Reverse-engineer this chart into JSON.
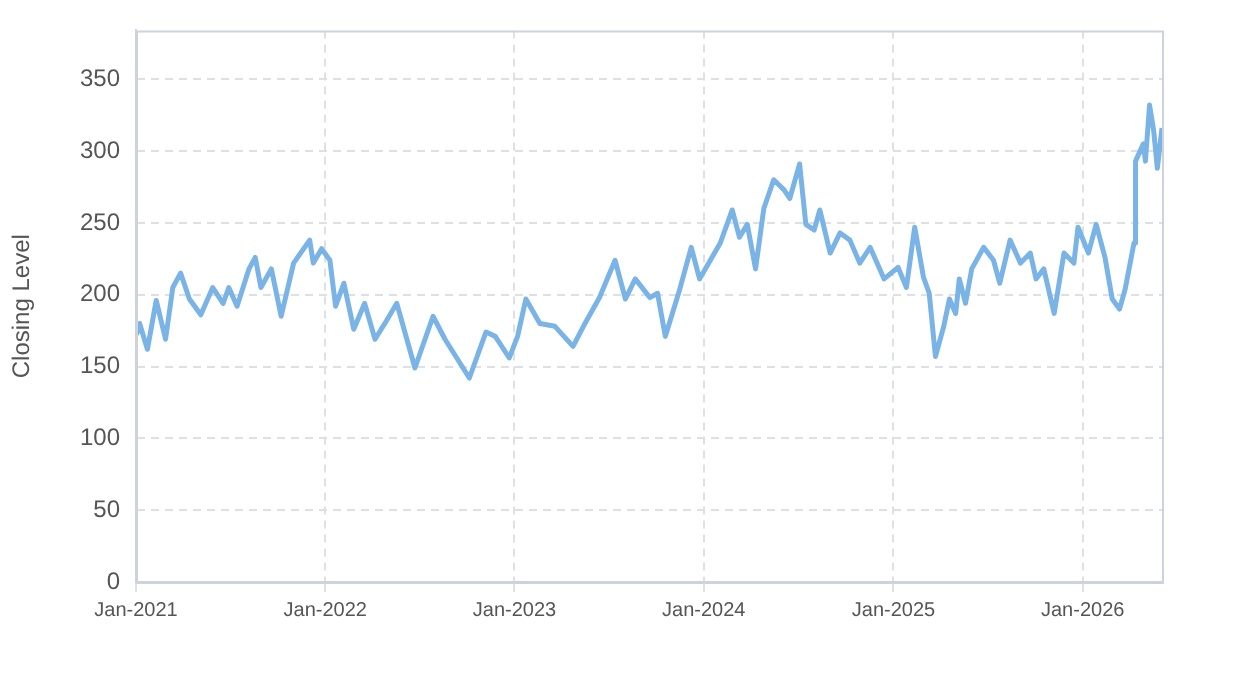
{
  "chart_data": {
    "type": "line",
    "ylabel": "Closing Level",
    "x": [
      "2021-01-02",
      "2021-01-08",
      "2021-01-23",
      "2021-02-09",
      "2021-02-27",
      "2021-03-13",
      "2021-03-28",
      "2021-04-14",
      "2021-05-06",
      "2021-05-29",
      "2021-06-18",
      "2021-06-29",
      "2021-07-15",
      "2021-08-07",
      "2021-08-19",
      "2021-08-30",
      "2021-09-19",
      "2021-10-08",
      "2021-11-01",
      "2021-12-02",
      "2021-12-09",
      "2021-12-25",
      "2022-01-10",
      "2022-01-21",
      "2022-02-06",
      "2022-02-25",
      "2022-03-18",
      "2022-04-07",
      "2022-04-26",
      "2022-05-19",
      "2022-06-23",
      "2022-07-28",
      "2022-08-20",
      "2022-10-06",
      "2022-11-07",
      "2022-11-25",
      "2022-12-22",
      "2023-01-07",
      "2023-01-23",
      "2023-02-19",
      "2023-03-20",
      "2023-04-24",
      "2023-05-17",
      "2023-06-14",
      "2023-07-14",
      "2023-08-03",
      "2023-08-22",
      "2023-09-19",
      "2023-10-04",
      "2023-10-19",
      "2023-11-16",
      "2023-12-08",
      "2023-12-24",
      "2024-02-02",
      "2024-02-25",
      "2024-03-10",
      "2024-03-25",
      "2024-04-10",
      "2024-04-26",
      "2024-05-15",
      "2024-06-04",
      "2024-06-15",
      "2024-07-04",
      "2024-07-16",
      "2024-08-01",
      "2024-08-12",
      "2024-09-01",
      "2024-09-20",
      "2024-10-09",
      "2024-10-28",
      "2024-11-17",
      "2024-12-14",
      "2025-01-10",
      "2025-01-26",
      "2025-02-11",
      "2025-02-28",
      "2025-03-11",
      "2025-03-23",
      "2025-04-08",
      "2025-04-19",
      "2025-05-01",
      "2025-05-08",
      "2025-05-20",
      "2025-06-01",
      "2025-06-24",
      "2025-07-13",
      "2025-07-25",
      "2025-08-14",
      "2025-09-03",
      "2025-09-22",
      "2025-10-03",
      "2025-10-18",
      "2025-11-07",
      "2025-11-26",
      "2025-12-15",
      "2025-12-23",
      "2026-01-12",
      "2026-01-27",
      "2026-02-13",
      "2026-02-27",
      "2026-03-13",
      "2026-03-24",
      "2026-04-10",
      "2026-04-13",
      "2026-04-28",
      "2026-05-02",
      "2026-05-10",
      "2026-05-18",
      "2026-05-25",
      "2026-06-03"
    ],
    "series": [
      {
        "color": "#7ab3e6",
        "values": [
          172,
          180,
          162,
          196,
          169,
          205,
          215,
          197,
          186,
          205,
          194,
          205,
          192,
          218,
          226,
          205,
          218,
          185,
          222,
          238,
          222,
          232,
          224,
          192,
          208,
          176,
          194,
          169,
          180,
          194,
          149,
          185,
          169,
          142,
          174,
          171,
          156,
          171,
          197,
          180,
          178,
          164,
          180,
          198,
          224,
          197,
          211,
          198,
          201,
          171,
          204,
          233,
          211,
          236,
          259,
          240,
          249,
          218,
          260,
          280,
          273,
          267,
          291,
          249,
          245,
          259,
          229,
          243,
          238,
          222,
          233,
          211,
          219,
          205,
          247,
          212,
          201,
          157,
          178,
          197,
          187,
          211,
          194,
          218,
          233,
          224,
          208,
          238,
          222,
          229,
          211,
          218,
          187,
          229,
          222,
          247,
          229,
          249,
          226,
          197,
          190,
          204,
          236,
          293,
          305,
          293,
          332,
          314,
          288,
          316
        ]
      }
    ],
    "xlim": [
      "2021-01-01",
      "2026-06-03"
    ],
    "xticks": [
      {
        "value": "2021-01-01",
        "label": "Jan-2021"
      },
      {
        "value": "2022-01-01",
        "label": "Jan-2022"
      },
      {
        "value": "2023-01-01",
        "label": "Jan-2023"
      },
      {
        "value": "2024-01-01",
        "label": "Jan-2024"
      },
      {
        "value": "2025-01-01",
        "label": "Jan-2025"
      },
      {
        "value": "2026-01-01",
        "label": "Jan-2026"
      }
    ],
    "ylim": [
      0,
      384
    ],
    "yticks": [
      0,
      50,
      100,
      150,
      200,
      250,
      300,
      350
    ],
    "grid": true,
    "legend": false,
    "marker": "none",
    "line_style": "solid"
  }
}
